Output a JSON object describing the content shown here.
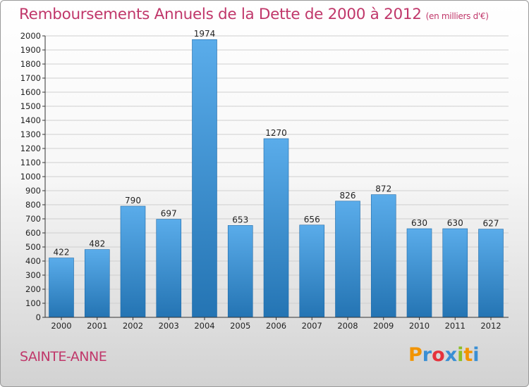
{
  "page": {
    "title": "Remboursements Annuels de la Dette de 2000 à 2012",
    "unit_note": "(en milliers d'€)",
    "commune": "SAINTE-ANNE",
    "logo": {
      "letters": [
        "P",
        "r",
        "o",
        "x",
        "i",
        "t",
        "i"
      ],
      "colors": [
        "#f29400",
        "#3a8fd4",
        "#e5323c",
        "#3a8fd4",
        "#8cbf26",
        "#f29400",
        "#3a8fd4"
      ]
    },
    "colors": {
      "accent": "#c0376a",
      "bar_top": "#5aacea",
      "bar_bottom": "#2474b3"
    }
  },
  "chart_data": {
    "type": "bar",
    "categories": [
      "2000",
      "2001",
      "2002",
      "2003",
      "2004",
      "2005",
      "2006",
      "2007",
      "2008",
      "2009",
      "2010",
      "2011",
      "2012"
    ],
    "values": [
      422,
      482,
      790,
      697,
      1974,
      653,
      1270,
      656,
      826,
      872,
      630,
      630,
      627
    ],
    "title": "Remboursements Annuels de la Dette de 2000 à 2012",
    "ylim": [
      0,
      2000
    ],
    "yticks": [
      0,
      100,
      200,
      300,
      400,
      500,
      600,
      700,
      800,
      900,
      1000,
      1100,
      1200,
      1300,
      1400,
      1500,
      1600,
      1700,
      1800,
      1900,
      2000
    ],
    "grid": true,
    "data_labels": true
  }
}
